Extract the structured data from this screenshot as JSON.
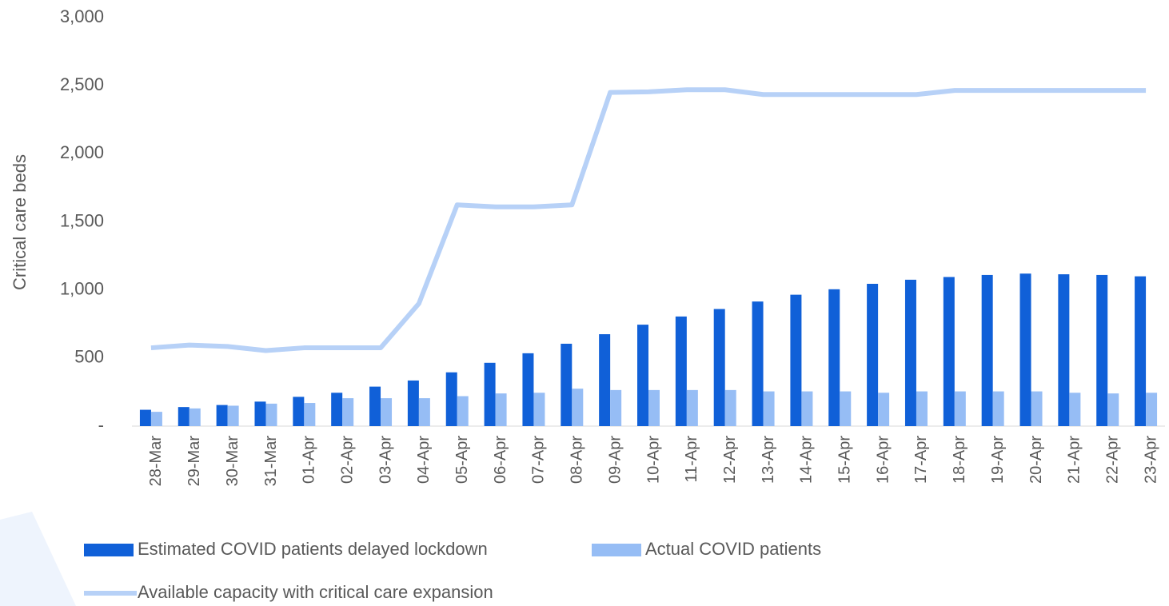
{
  "chart_data": {
    "type": "bar-line",
    "y_label": "Critical care beds",
    "categories": [
      "28-Mar",
      "29-Mar",
      "30-Mar",
      "31-Mar",
      "01-Apr",
      "02-Apr",
      "03-Apr",
      "04-Apr",
      "05-Apr",
      "06-Apr",
      "07-Apr",
      "08-Apr",
      "09-Apr",
      "10-Apr",
      "11-Apr",
      "12-Apr",
      "13-Apr",
      "14-Apr",
      "15-Apr",
      "16-Apr",
      "17-Apr",
      "18-Apr",
      "19-Apr",
      "20-Apr",
      "21-Apr",
      "22-Apr",
      "23-Apr"
    ],
    "series": [
      {
        "name": "Estimated COVID patients delayed lockdown",
        "color": "#1060d8",
        "kind": "bar",
        "values": [
          120,
          140,
          155,
          180,
          215,
          245,
          290,
          335,
          395,
          465,
          535,
          605,
          675,
          745,
          805,
          860,
          915,
          965,
          1005,
          1045,
          1075,
          1095,
          1110,
          1120,
          1115,
          1110,
          1100
        ]
      },
      {
        "name": "Actual COVID patients",
        "color": "#96bdf5",
        "kind": "bar",
        "values": [
          105,
          130,
          150,
          165,
          170,
          205,
          205,
          205,
          220,
          240,
          245,
          275,
          265,
          265,
          265,
          265,
          255,
          255,
          255,
          245,
          255,
          255,
          255,
          255,
          245,
          240,
          245
        ]
      },
      {
        "name": "Available capacity with critical care expansion",
        "color": "#b7d1f7",
        "kind": "line",
        "values": [
          575,
          595,
          585,
          555,
          575,
          575,
          575,
          900,
          1625,
          1610,
          1610,
          1625,
          2450,
          2455,
          2470,
          2470,
          2435,
          2435,
          2435,
          2435,
          2435,
          2465,
          2465,
          2465,
          2465,
          2465,
          2465
        ]
      }
    ],
    "ylim": [
      0,
      3000
    ],
    "yticks": [
      {
        "value": 0,
        "label": "-"
      },
      500,
      {
        "value": 1000,
        "label": "1,000"
      },
      {
        "value": 1500,
        "label": "1,500"
      },
      {
        "value": 2000,
        "label": "2,000"
      },
      {
        "value": 2500,
        "label": "2,500"
      },
      {
        "value": 3000,
        "label": "3,000"
      }
    ]
  }
}
